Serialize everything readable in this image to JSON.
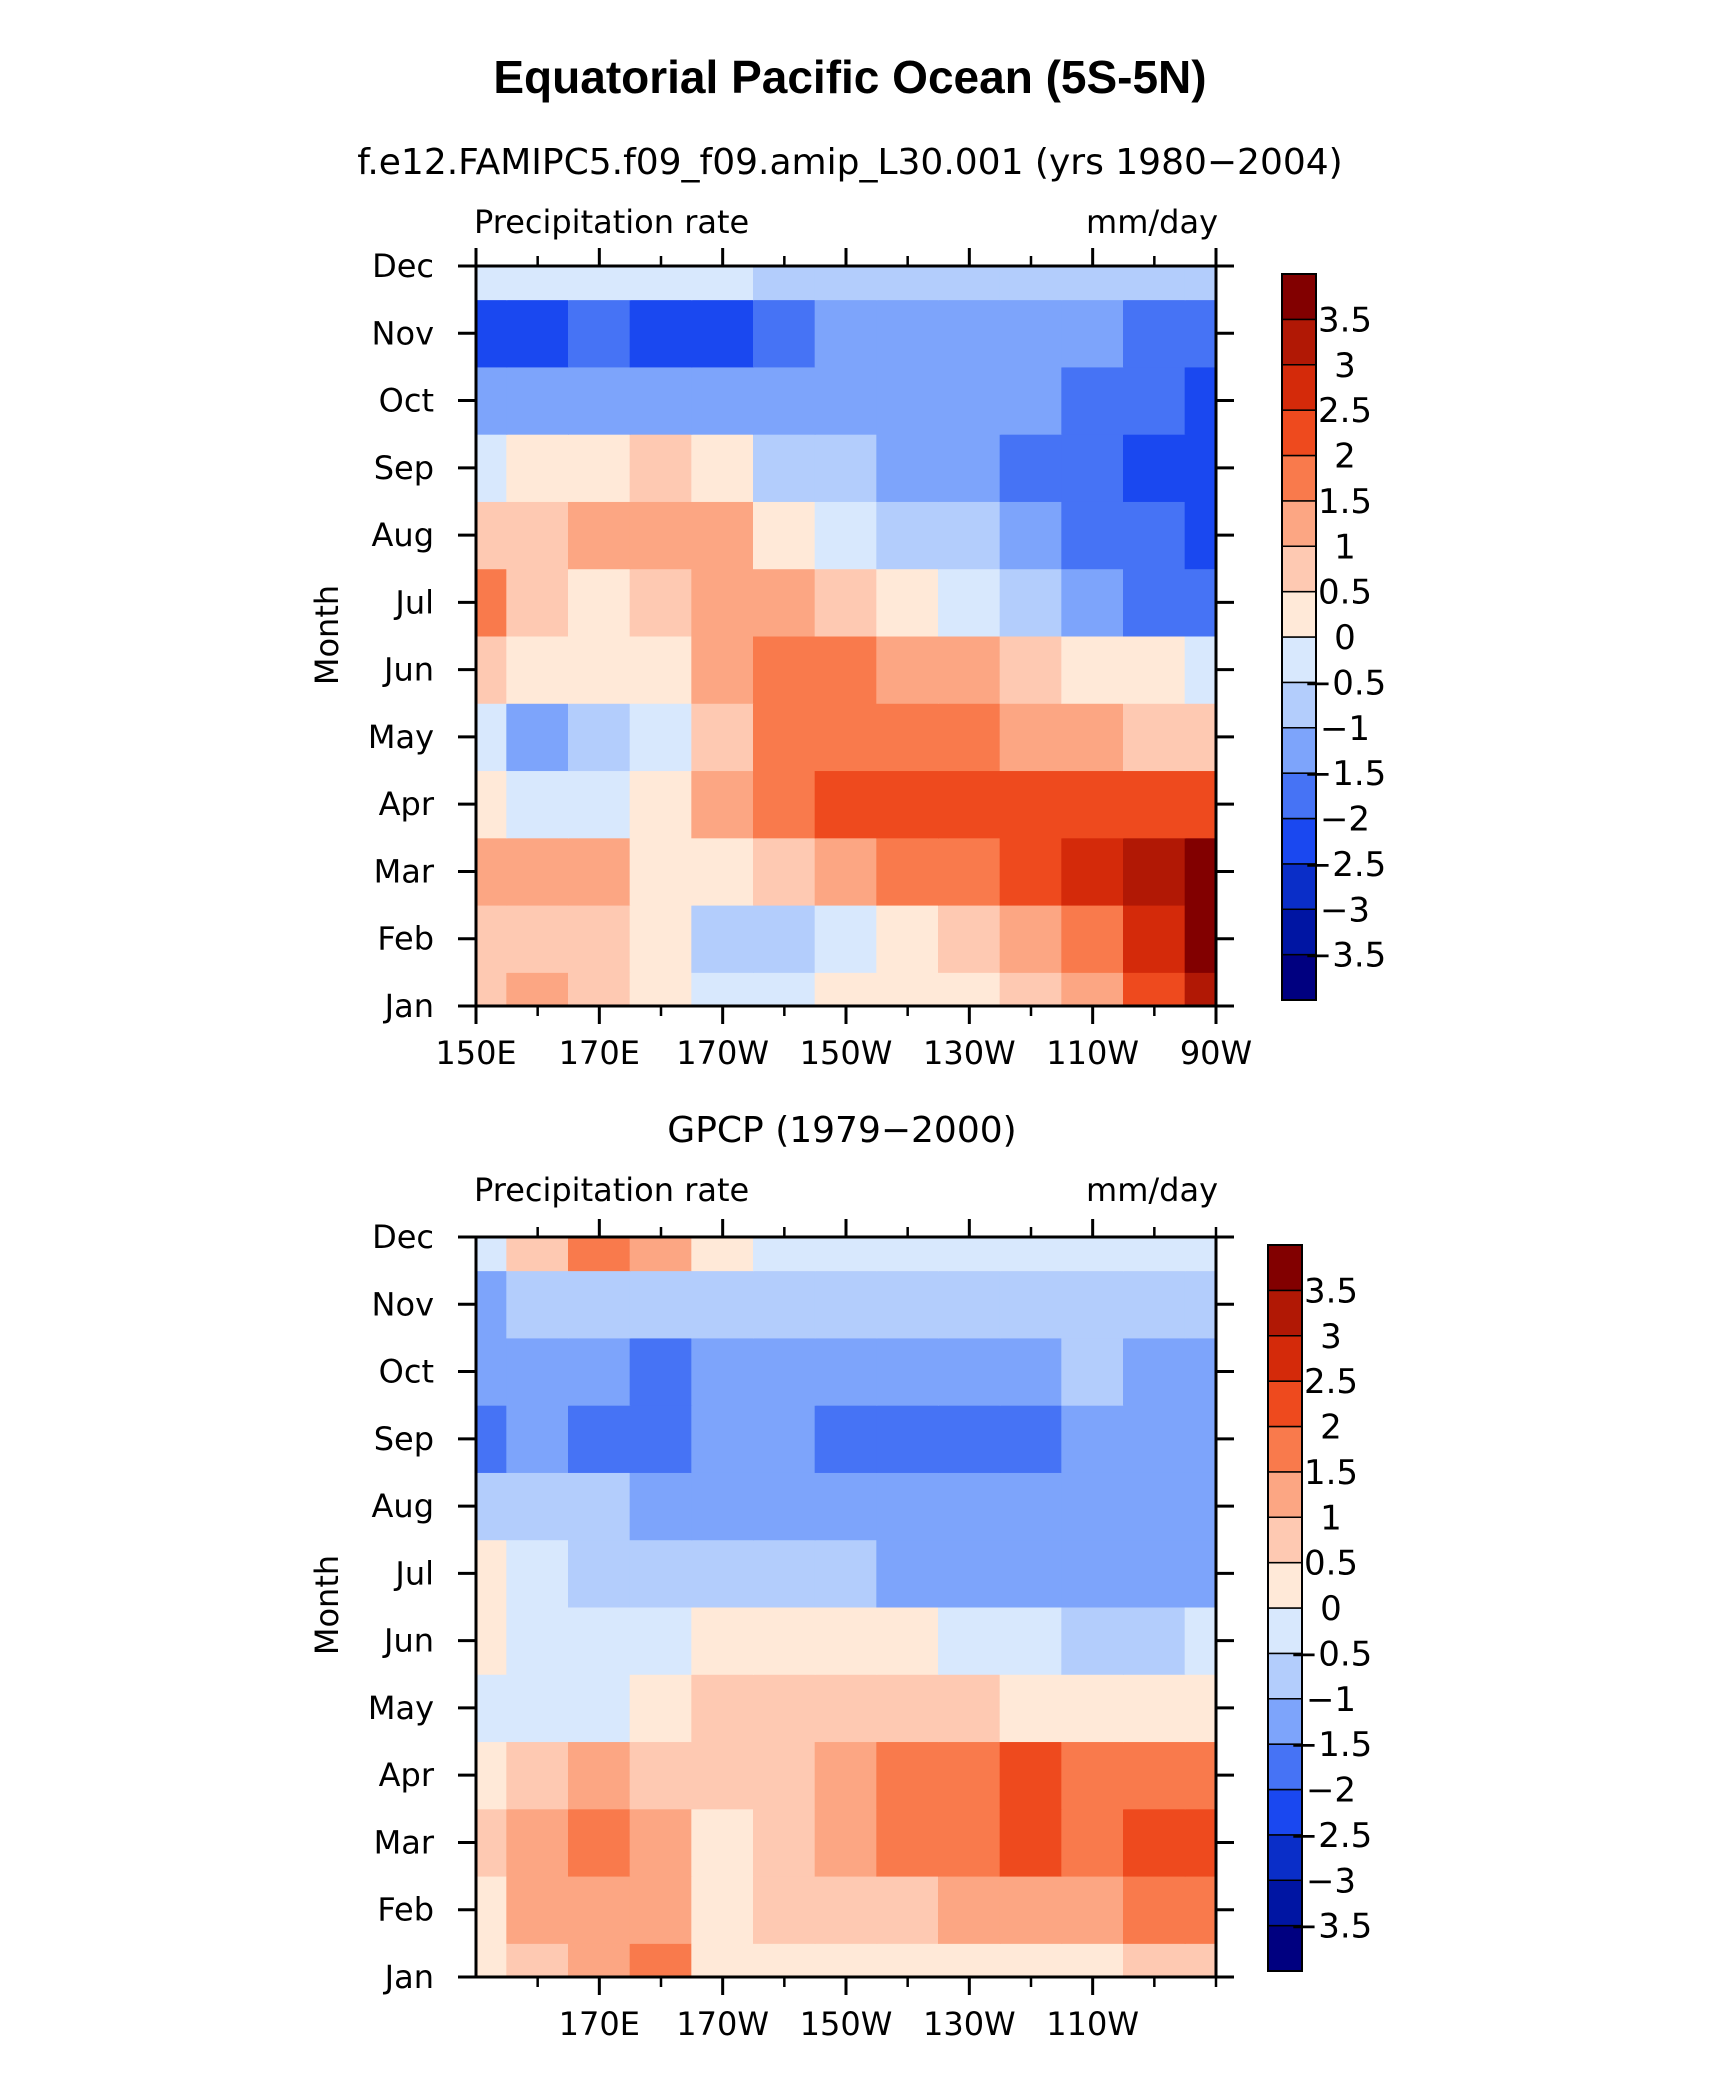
{
  "figure": {
    "title": "Equatorial Pacific Ocean (5S-5N)"
  },
  "chart_data": [
    {
      "type": "heatmap",
      "subtitle": "f.e12.FAMIPC5.f09_f09.amip_L30.001 (yrs 1980−2004)",
      "top_left_label": "Precipitation rate",
      "top_right_label": "mm/day",
      "ylabel": "Month",
      "x_tick_labels": [
        "150E",
        "170E",
        "170W",
        "150W",
        "130W",
        "110W",
        "90W"
      ],
      "y_tick_labels": [
        "Jan",
        "Feb",
        "Mar",
        "Apr",
        "May",
        "Jun",
        "Jul",
        "Aug",
        "Sep",
        "Oct",
        "Nov",
        "Dec"
      ],
      "x_columns": [
        "150E",
        "160E",
        "170E",
        "180",
        "170W",
        "160W",
        "150W",
        "140W",
        "130W",
        "120W",
        "110W",
        "100W",
        "90W"
      ],
      "y_rows": [
        "Jan",
        "Feb",
        "Mar",
        "Apr",
        "May",
        "Jun",
        "Jul",
        "Aug",
        "Sep",
        "Oct",
        "Nov",
        "Dec"
      ],
      "values": [
        [
          0.5,
          1.2,
          0.8,
          0.3,
          -0.2,
          -0.3,
          0.1,
          0.0,
          0.3,
          0.6,
          1.2,
          2.2,
          3.2
        ],
        [
          0.6,
          0.8,
          0.7,
          0.2,
          -0.8,
          -0.9,
          -0.3,
          0.0,
          0.5,
          1.0,
          1.8,
          2.8,
          3.7
        ],
        [
          1.2,
          1.4,
          1.0,
          0.2,
          0.1,
          0.5,
          1.2,
          1.5,
          1.8,
          2.2,
          2.7,
          3.4,
          3.8
        ],
        [
          0.2,
          -0.5,
          -0.2,
          0.3,
          1.0,
          1.8,
          2.0,
          2.4,
          2.3,
          2.1,
          2.0,
          2.0,
          2.1
        ],
        [
          -0.2,
          -1.2,
          -1.0,
          -0.1,
          0.8,
          1.5,
          1.8,
          1.8,
          1.6,
          1.3,
          1.0,
          0.8,
          0.6
        ],
        [
          0.6,
          0.3,
          0.1,
          0.4,
          1.2,
          1.6,
          1.8,
          1.3,
          1.0,
          0.6,
          0.3,
          0.0,
          -0.2
        ],
        [
          1.6,
          0.9,
          0.3,
          0.8,
          1.1,
          1.0,
          0.6,
          0.2,
          -0.4,
          -0.7,
          -1.2,
          -1.6,
          -2.0
        ],
        [
          0.6,
          0.9,
          1.1,
          1.3,
          1.2,
          0.4,
          -0.1,
          -0.6,
          -0.9,
          -1.4,
          -1.7,
          -2.0,
          -2.2
        ],
        [
          -0.3,
          0.2,
          0.4,
          0.6,
          0.1,
          -0.6,
          -1.0,
          -1.3,
          -1.5,
          -1.6,
          -1.8,
          -2.1,
          -2.3
        ],
        [
          -1.5,
          -1.2,
          -1.2,
          -1.5,
          -1.4,
          -1.5,
          -1.3,
          -1.3,
          -1.4,
          -1.5,
          -1.7,
          -2.0,
          -2.3
        ],
        [
          -2.3,
          -2.4,
          -2.0,
          -2.1,
          -2.2,
          -2.0,
          -1.5,
          -1.3,
          -1.4,
          -1.4,
          -1.5,
          -1.7,
          -1.8
        ],
        [
          -0.4,
          -0.3,
          -0.3,
          -0.2,
          -0.4,
          -0.7,
          -0.8,
          -0.8,
          -0.8,
          -0.8,
          -0.8,
          -0.8,
          -0.8
        ]
      ]
    },
    {
      "type": "heatmap",
      "subtitle": "GPCP (1979−2000)",
      "top_left_label": "Precipitation rate",
      "top_right_label": "mm/day",
      "ylabel": "Month",
      "x_tick_labels": [
        "170E",
        "170W",
        "150W",
        "130W",
        "110W"
      ],
      "y_tick_labels": [
        "Jan",
        "Feb",
        "Mar",
        "Apr",
        "May",
        "Jun",
        "Jul",
        "Aug",
        "Sep",
        "Oct",
        "Nov",
        "Dec"
      ],
      "x_columns": [
        "150E",
        "160E",
        "170E",
        "180",
        "170W",
        "160W",
        "150W",
        "140W",
        "130W",
        "120W",
        "110W",
        "100W",
        "90W"
      ],
      "y_rows": [
        "Jan",
        "Feb",
        "Mar",
        "Apr",
        "May",
        "Jun",
        "Jul",
        "Aug",
        "Sep",
        "Oct",
        "Nov",
        "Dec"
      ],
      "values": [
        [
          0.4,
          0.8,
          1.2,
          1.6,
          0.4,
          0.2,
          0.3,
          0.3,
          0.4,
          0.4,
          0.4,
          0.5,
          0.6
        ],
        [
          0.4,
          1.0,
          1.4,
          1.2,
          0.2,
          0.5,
          0.9,
          0.9,
          1.0,
          1.3,
          1.4,
          1.5,
          1.6
        ],
        [
          0.6,
          1.4,
          1.6,
          1.3,
          0.4,
          0.7,
          1.3,
          1.6,
          1.9,
          2.1,
          1.9,
          2.1,
          2.0
        ],
        [
          0.4,
          0.7,
          1.1,
          0.9,
          0.7,
          0.9,
          1.3,
          1.7,
          1.9,
          2.1,
          1.8,
          1.9,
          1.7
        ],
        [
          -0.3,
          -0.4,
          -0.2,
          0.3,
          0.7,
          0.8,
          0.9,
          0.9,
          0.6,
          0.4,
          0.3,
          0.1,
          0.0
        ],
        [
          0.4,
          -0.4,
          -0.3,
          -0.1,
          0.3,
          0.2,
          0.1,
          0.0,
          -0.2,
          -0.4,
          -0.6,
          -0.7,
          -0.5
        ],
        [
          0.3,
          -0.3,
          -0.6,
          -0.8,
          -0.8,
          -0.9,
          -1.0,
          -1.1,
          -1.1,
          -1.1,
          -1.2,
          -1.3,
          -1.4
        ],
        [
          -0.6,
          -0.7,
          -1.0,
          -1.1,
          -1.2,
          -1.2,
          -1.5,
          -1.5,
          -1.4,
          -1.4,
          -1.2,
          -1.3,
          -1.5
        ],
        [
          -1.8,
          -1.4,
          -1.8,
          -1.8,
          -1.3,
          -1.2,
          -1.6,
          -1.6,
          -1.6,
          -1.7,
          -1.3,
          -1.2,
          -1.5
        ],
        [
          -1.4,
          -1.2,
          -1.5,
          -1.7,
          -1.4,
          -1.2,
          -1.4,
          -1.3,
          -1.3,
          -1.2,
          -1.0,
          -1.1,
          -1.5
        ],
        [
          -1.3,
          -1.0,
          -0.7,
          -0.8,
          -0.9,
          -0.8,
          -0.9,
          -1.0,
          -1.0,
          -1.0,
          -0.9,
          -0.9,
          -1.0
        ],
        [
          -0.3,
          0.5,
          1.5,
          1.2,
          0.2,
          -0.2,
          -0.4,
          -0.5,
          -0.5,
          -0.5,
          -0.5,
          -0.5,
          -0.5
        ]
      ]
    }
  ],
  "colorbar": {
    "levels": [
      -3.5,
      -3,
      -2.5,
      -2,
      -1.5,
      -1,
      -0.5,
      0,
      0.5,
      1,
      1.5,
      2,
      2.5,
      3,
      3.5
    ],
    "labels": [
      "3.5",
      "3",
      "2.5",
      "2",
      "1.5",
      "1",
      "0.5",
      "0",
      "−0.5",
      "−1",
      "−1.5",
      "−2",
      "−2.5",
      "−3",
      "−3.5"
    ],
    "colors": [
      "#000080",
      "#0015a3",
      "#0a2ec8",
      "#1a48f0",
      "#4673f5",
      "#7da4fb",
      "#b3cdfc",
      "#d8e8fd",
      "#ffe9d8",
      "#fec9b2",
      "#fca683",
      "#f97a4c",
      "#ee4a1e",
      "#d42a0a",
      "#b11805",
      "#820000"
    ]
  }
}
